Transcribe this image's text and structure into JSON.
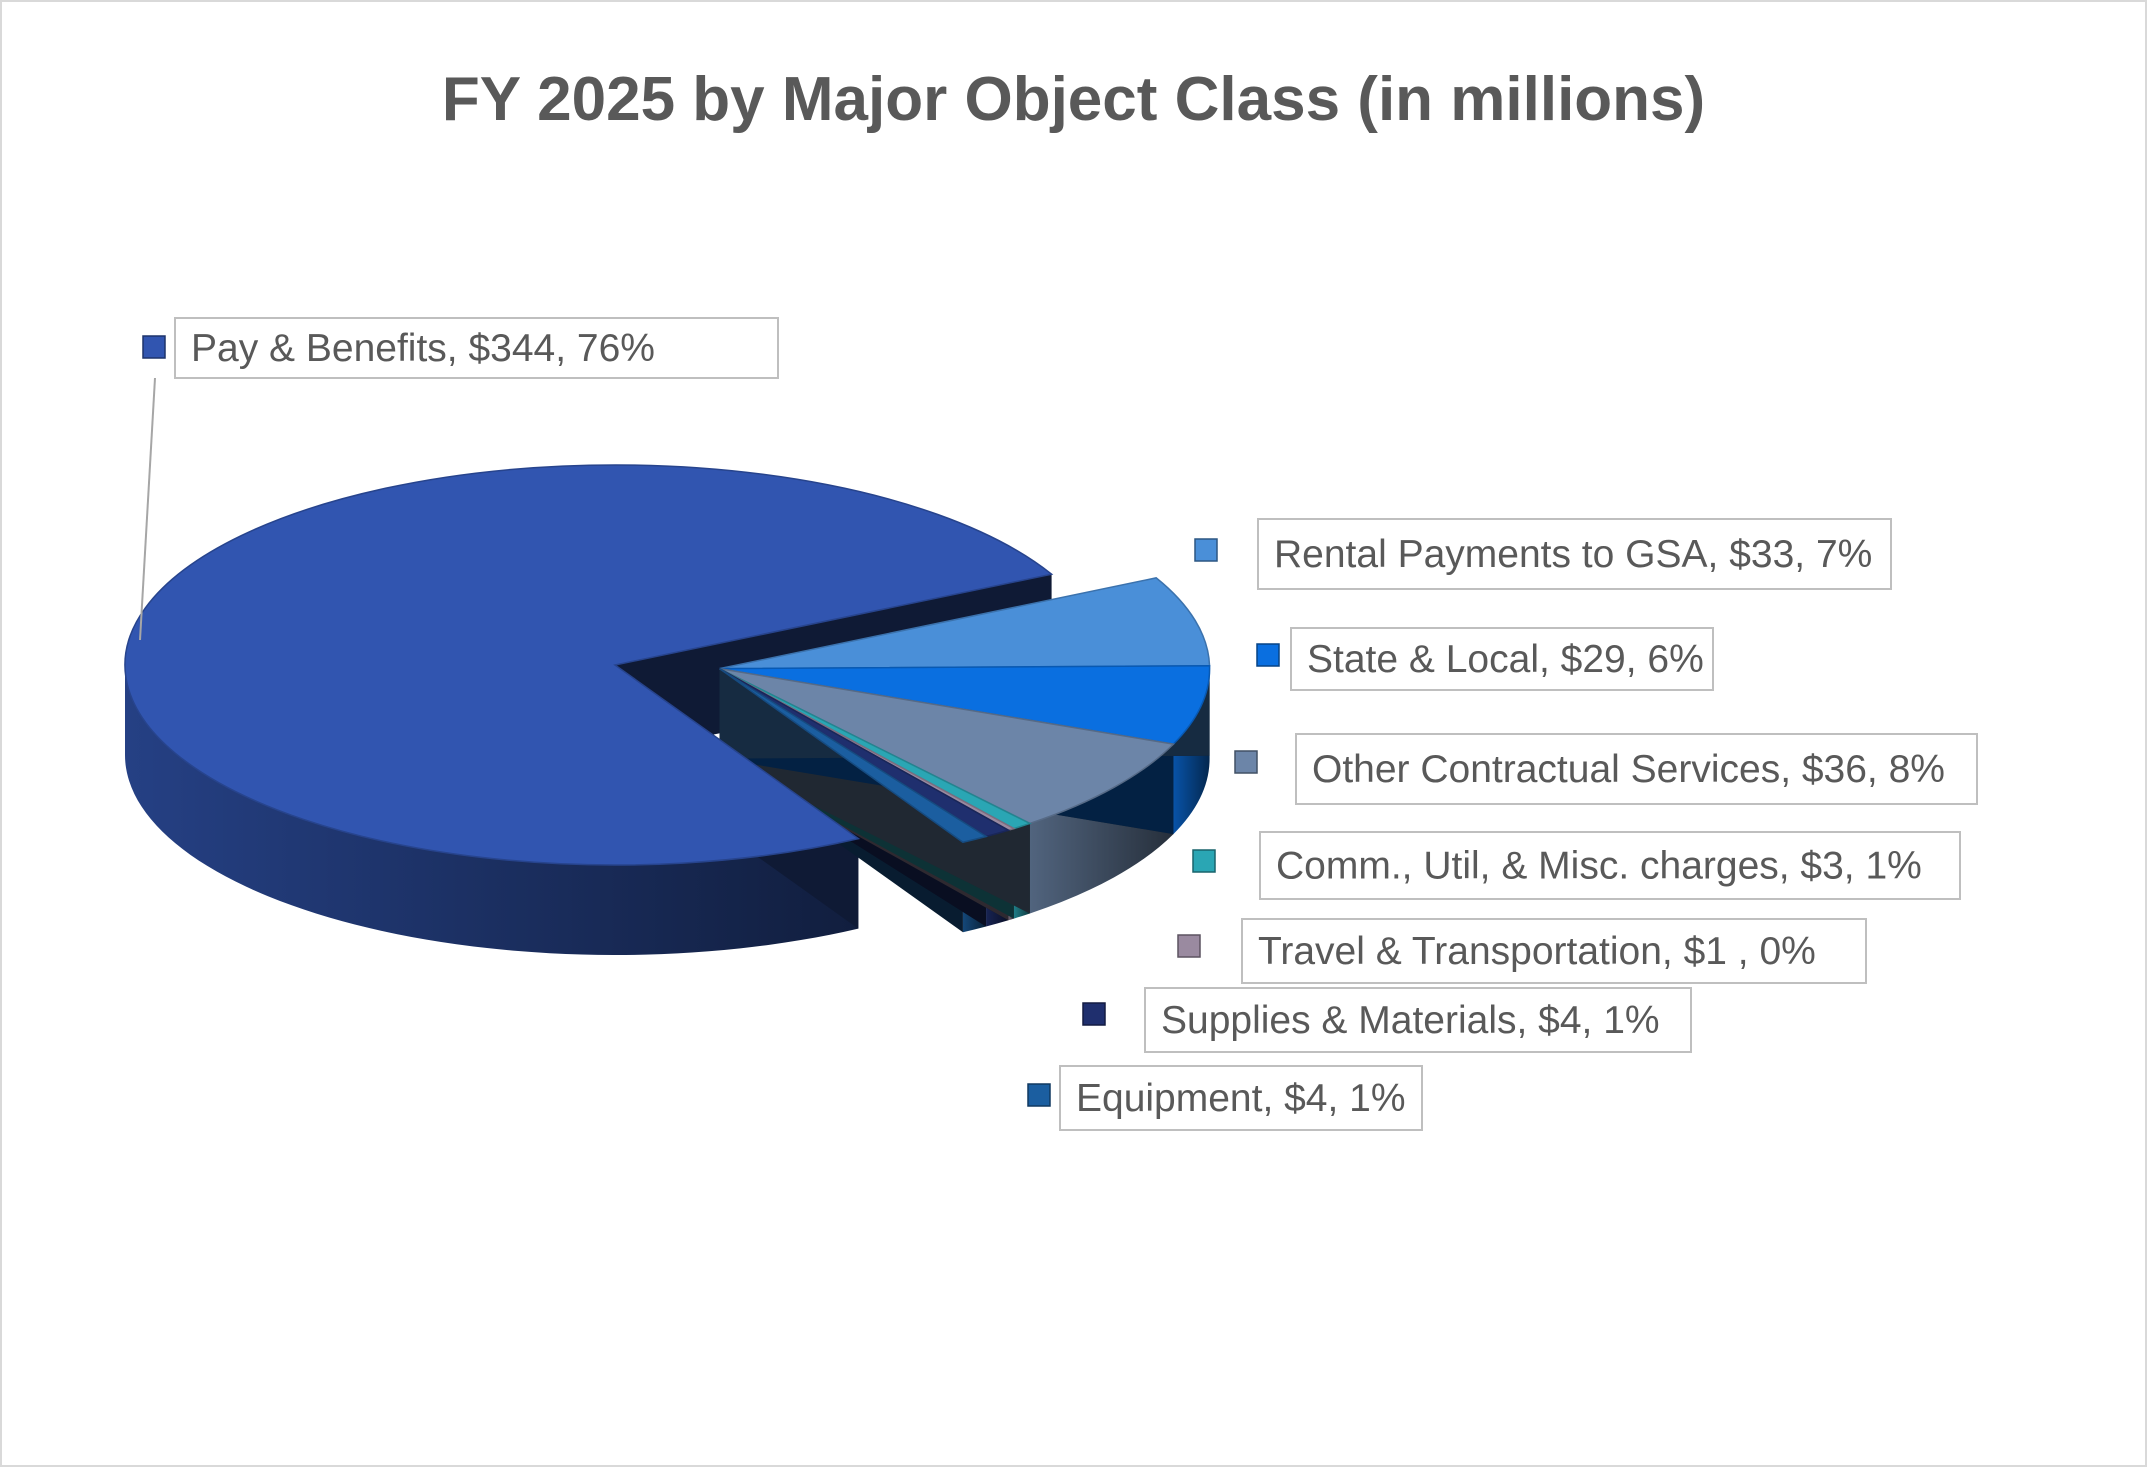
{
  "chart_data": {
    "type": "pie",
    "style": "3d-exploded",
    "title": "FY 2025 by Major Object Class (in millions)",
    "slices": [
      {
        "name": "Pay & Benefits",
        "value": 344,
        "percent": 76,
        "label": "Pay & Benefits, $344, 76%",
        "color": "#3155b0"
      },
      {
        "name": "Rental Payments to GSA",
        "value": 33,
        "percent": 7,
        "label": "Rental Payments to GSA, $33, 7%",
        "color": "#4a8fd8"
      },
      {
        "name": "State & Local",
        "value": 29,
        "percent": 6,
        "label": "State & Local, $29, 6%",
        "color": "#0a6fe0"
      },
      {
        "name": "Other Contractual Services",
        "value": 36,
        "percent": 8,
        "label": "Other Contractual Services, $36, 8%",
        "color": "#6c85a8"
      },
      {
        "name": "Comm., Util, & Misc. charges",
        "value": 3,
        "percent": 1,
        "label": "Comm., Util, & Misc. charges, $3, 1%",
        "color": "#2aa6b4"
      },
      {
        "name": "Travel & Transportation",
        "value": 1,
        "percent": 0,
        "label": "Travel & Transportation,  $1 , 0%",
        "color": "#9a8aa0"
      },
      {
        "name": "Supplies & Materials",
        "value": 4,
        "percent": 1,
        "label": "Supplies & Materials, $4, 1%",
        "color": "#1f2f6e"
      },
      {
        "name": "Equipment",
        "value": 4,
        "percent": 1,
        "label": "Equipment, $4, 1%",
        "color": "#1b5ea0"
      }
    ],
    "legend_position": "none",
    "labels": "outside with callout boxes"
  }
}
